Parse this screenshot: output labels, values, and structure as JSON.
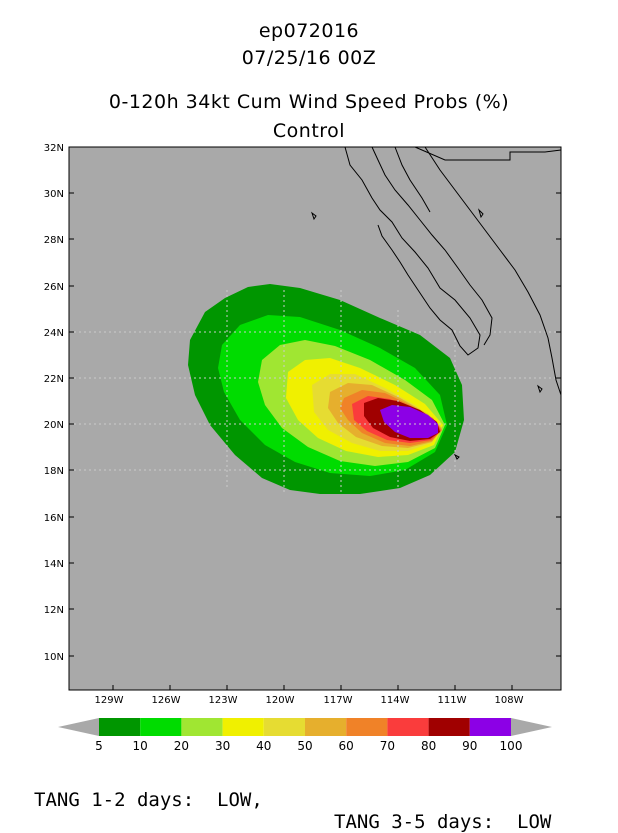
{
  "header": {
    "storm_id": "ep072016",
    "datetime": "07/25/16 00Z",
    "title": "0-120h 34kt Cum Wind Speed Probs (%)",
    "subtitle": "Control"
  },
  "map": {
    "lat_labels": [
      "32N",
      "30N",
      "28N",
      "26N",
      "24N",
      "22N",
      "20N",
      "18N",
      "16N",
      "14N",
      "12N",
      "10N"
    ],
    "lon_labels": [
      "129W",
      "126W",
      "123W",
      "120W",
      "117W",
      "114W",
      "111W",
      "108W"
    ],
    "ocean_color": "#a9a9a9"
  },
  "colorbar": {
    "labels": [
      "5",
      "10",
      "20",
      "30",
      "40",
      "50",
      "60",
      "70",
      "80",
      "90",
      "100"
    ],
    "colors": [
      "#009600",
      "#00dc00",
      "#a0e632",
      "#f0f000",
      "#e6dc32",
      "#e6af2d",
      "#f08228",
      "#fa3c3c",
      "#a00000",
      "#8c00e6"
    ]
  },
  "footer": {
    "tang_12": "TANG 1-2 days:  LOW,",
    "tang_35": "TANG 3-5 days:  LOW"
  }
}
